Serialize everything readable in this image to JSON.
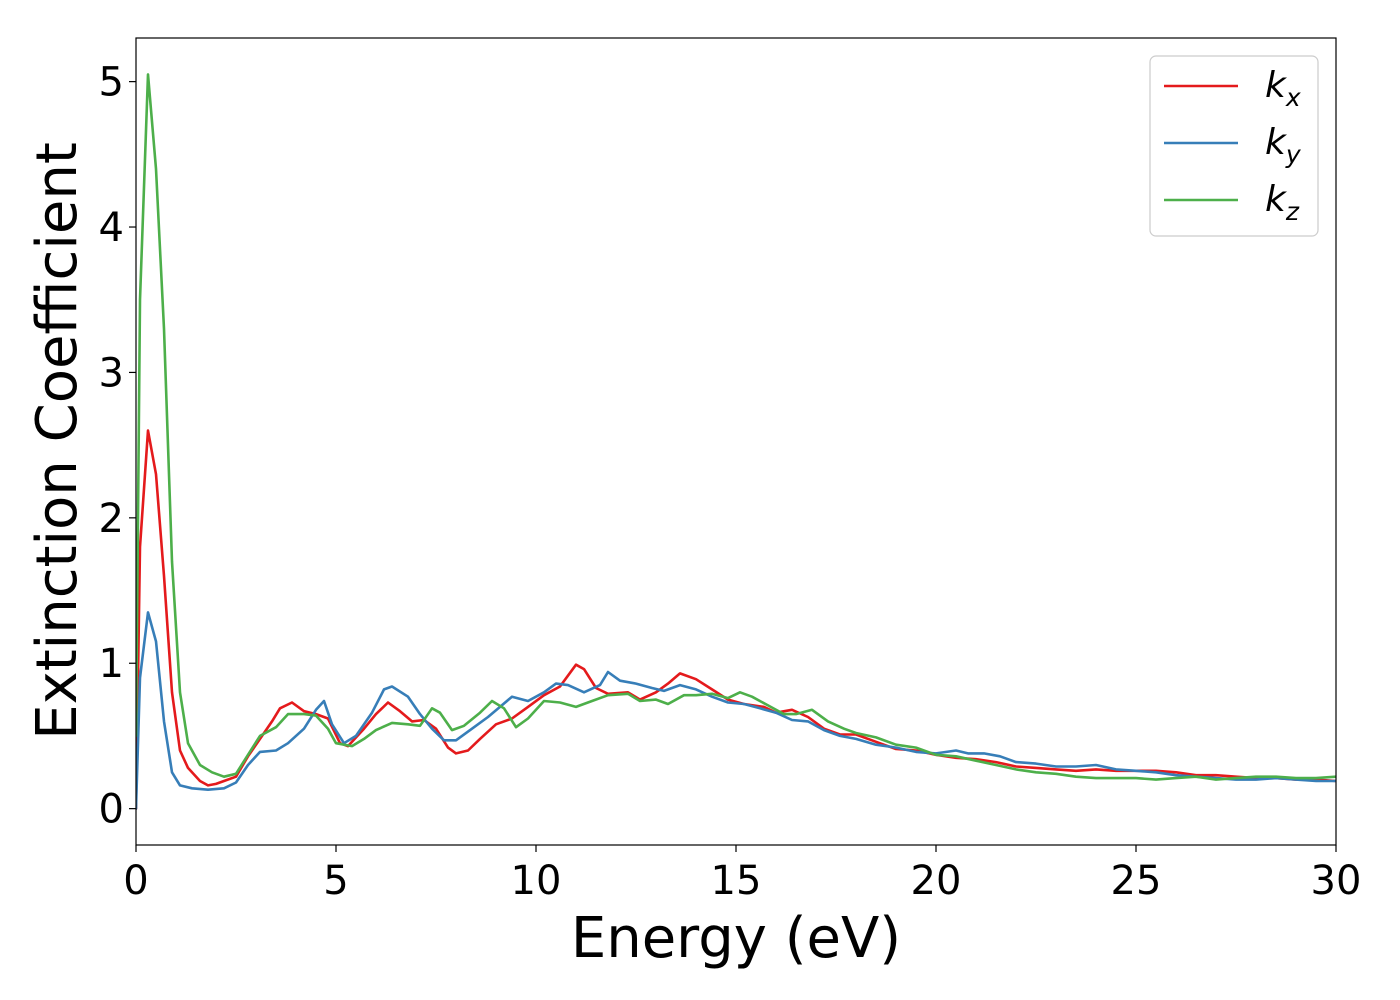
{
  "chart_data": {
    "type": "line",
    "xlabel": "Energy (eV)",
    "ylabel": "Extinction Coefficient",
    "xlim": [
      0,
      30
    ],
    "ylim": [
      -0.25,
      5.3
    ],
    "xticks": [
      0,
      5,
      10,
      15,
      20,
      25,
      30
    ],
    "xtick_labels": [
      "0",
      "5",
      "10",
      "15",
      "20",
      "25",
      "30"
    ],
    "yticks": [
      0,
      1,
      2,
      3,
      4,
      5
    ],
    "ytick_labels": [
      "0",
      "1",
      "2",
      "3",
      "4",
      "5"
    ],
    "grid": false,
    "legend_position": "top-right",
    "series": [
      {
        "name": "k_x",
        "label_main": "k",
        "label_sub": "x",
        "color": "#e41a1c",
        "points": [
          [
            0,
            0
          ],
          [
            0.1,
            1.8
          ],
          [
            0.3,
            2.6
          ],
          [
            0.5,
            2.3
          ],
          [
            0.7,
            1.6
          ],
          [
            0.9,
            0.8
          ],
          [
            1.1,
            0.4
          ],
          [
            1.3,
            0.28
          ],
          [
            1.6,
            0.19
          ],
          [
            1.8,
            0.16
          ],
          [
            2.0,
            0.17
          ],
          [
            2.2,
            0.19
          ],
          [
            2.5,
            0.22
          ],
          [
            2.8,
            0.36
          ],
          [
            3.1,
            0.48
          ],
          [
            3.4,
            0.6
          ],
          [
            3.6,
            0.69
          ],
          [
            3.9,
            0.73
          ],
          [
            4.2,
            0.67
          ],
          [
            4.5,
            0.65
          ],
          [
            4.8,
            0.62
          ],
          [
            5.1,
            0.45
          ],
          [
            5.3,
            0.43
          ],
          [
            5.7,
            0.55
          ],
          [
            6.0,
            0.65
          ],
          [
            6.3,
            0.73
          ],
          [
            6.6,
            0.67
          ],
          [
            6.9,
            0.6
          ],
          [
            7.2,
            0.61
          ],
          [
            7.5,
            0.55
          ],
          [
            7.8,
            0.42
          ],
          [
            8.0,
            0.38
          ],
          [
            8.3,
            0.4
          ],
          [
            8.6,
            0.48
          ],
          [
            9.0,
            0.58
          ],
          [
            9.4,
            0.62
          ],
          [
            9.8,
            0.7
          ],
          [
            10.2,
            0.78
          ],
          [
            10.6,
            0.84
          ],
          [
            11.0,
            0.99
          ],
          [
            11.2,
            0.96
          ],
          [
            11.5,
            0.83
          ],
          [
            11.8,
            0.79
          ],
          [
            12.3,
            0.8
          ],
          [
            12.6,
            0.75
          ],
          [
            13.0,
            0.8
          ],
          [
            13.3,
            0.86
          ],
          [
            13.6,
            0.93
          ],
          [
            14.0,
            0.89
          ],
          [
            14.4,
            0.82
          ],
          [
            14.8,
            0.75
          ],
          [
            15.2,
            0.72
          ],
          [
            15.7,
            0.7
          ],
          [
            16.0,
            0.66
          ],
          [
            16.4,
            0.68
          ],
          [
            16.8,
            0.63
          ],
          [
            17.2,
            0.55
          ],
          [
            17.6,
            0.51
          ],
          [
            18.0,
            0.51
          ],
          [
            18.5,
            0.46
          ],
          [
            19.0,
            0.41
          ],
          [
            19.5,
            0.4
          ],
          [
            20.0,
            0.37
          ],
          [
            20.5,
            0.35
          ],
          [
            21.0,
            0.34
          ],
          [
            21.5,
            0.32
          ],
          [
            22.0,
            0.29
          ],
          [
            22.5,
            0.28
          ],
          [
            23.0,
            0.27
          ],
          [
            23.5,
            0.26
          ],
          [
            24.0,
            0.27
          ],
          [
            24.5,
            0.26
          ],
          [
            25.0,
            0.26
          ],
          [
            25.5,
            0.26
          ],
          [
            26.0,
            0.25
          ],
          [
            26.5,
            0.23
          ],
          [
            27.0,
            0.23
          ],
          [
            27.5,
            0.22
          ],
          [
            28.0,
            0.21
          ],
          [
            28.5,
            0.21
          ],
          [
            29.0,
            0.2
          ],
          [
            29.5,
            0.2
          ],
          [
            30.0,
            0.19
          ]
        ]
      },
      {
        "name": "k_y",
        "label_main": "k",
        "label_sub": "y",
        "color": "#377eb8",
        "points": [
          [
            0,
            0
          ],
          [
            0.1,
            0.9
          ],
          [
            0.3,
            1.35
          ],
          [
            0.5,
            1.15
          ],
          [
            0.7,
            0.6
          ],
          [
            0.9,
            0.25
          ],
          [
            1.1,
            0.16
          ],
          [
            1.4,
            0.14
          ],
          [
            1.8,
            0.13
          ],
          [
            2.2,
            0.14
          ],
          [
            2.5,
            0.18
          ],
          [
            2.8,
            0.3
          ],
          [
            3.1,
            0.39
          ],
          [
            3.5,
            0.4
          ],
          [
            3.8,
            0.45
          ],
          [
            4.2,
            0.55
          ],
          [
            4.5,
            0.68
          ],
          [
            4.7,
            0.74
          ],
          [
            4.9,
            0.58
          ],
          [
            5.2,
            0.45
          ],
          [
            5.5,
            0.5
          ],
          [
            5.9,
            0.66
          ],
          [
            6.2,
            0.82
          ],
          [
            6.4,
            0.84
          ],
          [
            6.8,
            0.77
          ],
          [
            7.1,
            0.65
          ],
          [
            7.4,
            0.55
          ],
          [
            7.7,
            0.47
          ],
          [
            8.0,
            0.47
          ],
          [
            8.4,
            0.55
          ],
          [
            8.8,
            0.63
          ],
          [
            9.1,
            0.7
          ],
          [
            9.4,
            0.77
          ],
          [
            9.8,
            0.74
          ],
          [
            10.2,
            0.8
          ],
          [
            10.5,
            0.86
          ],
          [
            10.8,
            0.85
          ],
          [
            11.2,
            0.8
          ],
          [
            11.6,
            0.85
          ],
          [
            11.8,
            0.94
          ],
          [
            12.1,
            0.88
          ],
          [
            12.5,
            0.86
          ],
          [
            12.9,
            0.83
          ],
          [
            13.2,
            0.81
          ],
          [
            13.6,
            0.85
          ],
          [
            14.0,
            0.82
          ],
          [
            14.4,
            0.77
          ],
          [
            14.8,
            0.73
          ],
          [
            15.2,
            0.72
          ],
          [
            15.6,
            0.69
          ],
          [
            16.0,
            0.66
          ],
          [
            16.4,
            0.61
          ],
          [
            16.8,
            0.6
          ],
          [
            17.2,
            0.54
          ],
          [
            17.6,
            0.5
          ],
          [
            18.0,
            0.48
          ],
          [
            18.5,
            0.44
          ],
          [
            19.0,
            0.42
          ],
          [
            19.5,
            0.39
          ],
          [
            20.0,
            0.38
          ],
          [
            20.5,
            0.4
          ],
          [
            20.8,
            0.38
          ],
          [
            21.2,
            0.38
          ],
          [
            21.6,
            0.36
          ],
          [
            22.0,
            0.32
          ],
          [
            22.5,
            0.31
          ],
          [
            23.0,
            0.29
          ],
          [
            23.5,
            0.29
          ],
          [
            24.0,
            0.3
          ],
          [
            24.5,
            0.27
          ],
          [
            25.0,
            0.26
          ],
          [
            25.5,
            0.25
          ],
          [
            26.0,
            0.23
          ],
          [
            26.5,
            0.22
          ],
          [
            27.0,
            0.21
          ],
          [
            27.5,
            0.2
          ],
          [
            28.0,
            0.2
          ],
          [
            28.5,
            0.21
          ],
          [
            29.0,
            0.2
          ],
          [
            29.5,
            0.19
          ],
          [
            30.0,
            0.19
          ]
        ]
      },
      {
        "name": "k_z",
        "label_main": "k",
        "label_sub": "z",
        "color": "#4daf4a",
        "points": [
          [
            0,
            0.5
          ],
          [
            0.1,
            3.5
          ],
          [
            0.3,
            5.05
          ],
          [
            0.5,
            4.4
          ],
          [
            0.7,
            3.3
          ],
          [
            0.9,
            1.7
          ],
          [
            1.1,
            0.8
          ],
          [
            1.3,
            0.45
          ],
          [
            1.6,
            0.3
          ],
          [
            1.9,
            0.25
          ],
          [
            2.2,
            0.22
          ],
          [
            2.5,
            0.24
          ],
          [
            2.8,
            0.37
          ],
          [
            3.1,
            0.5
          ],
          [
            3.5,
            0.56
          ],
          [
            3.8,
            0.65
          ],
          [
            4.2,
            0.65
          ],
          [
            4.5,
            0.64
          ],
          [
            4.8,
            0.55
          ],
          [
            5.0,
            0.45
          ],
          [
            5.4,
            0.43
          ],
          [
            5.7,
            0.48
          ],
          [
            6.0,
            0.54
          ],
          [
            6.4,
            0.59
          ],
          [
            6.8,
            0.58
          ],
          [
            7.1,
            0.57
          ],
          [
            7.4,
            0.69
          ],
          [
            7.6,
            0.66
          ],
          [
            7.9,
            0.54
          ],
          [
            8.2,
            0.57
          ],
          [
            8.6,
            0.66
          ],
          [
            8.9,
            0.74
          ],
          [
            9.2,
            0.69
          ],
          [
            9.5,
            0.56
          ],
          [
            9.8,
            0.62
          ],
          [
            10.2,
            0.74
          ],
          [
            10.6,
            0.73
          ],
          [
            11.0,
            0.7
          ],
          [
            11.4,
            0.74
          ],
          [
            11.8,
            0.78
          ],
          [
            12.3,
            0.79
          ],
          [
            12.6,
            0.74
          ],
          [
            13.0,
            0.75
          ],
          [
            13.3,
            0.72
          ],
          [
            13.7,
            0.78
          ],
          [
            14.0,
            0.78
          ],
          [
            14.4,
            0.79
          ],
          [
            14.8,
            0.76
          ],
          [
            15.1,
            0.8
          ],
          [
            15.4,
            0.77
          ],
          [
            15.8,
            0.71
          ],
          [
            16.2,
            0.65
          ],
          [
            16.5,
            0.65
          ],
          [
            16.9,
            0.68
          ],
          [
            17.3,
            0.6
          ],
          [
            17.7,
            0.55
          ],
          [
            18.0,
            0.52
          ],
          [
            18.5,
            0.49
          ],
          [
            19.0,
            0.44
          ],
          [
            19.5,
            0.42
          ],
          [
            20.0,
            0.37
          ],
          [
            20.5,
            0.36
          ],
          [
            21.0,
            0.33
          ],
          [
            21.5,
            0.3
          ],
          [
            22.0,
            0.27
          ],
          [
            22.5,
            0.25
          ],
          [
            23.0,
            0.24
          ],
          [
            23.5,
            0.22
          ],
          [
            24.0,
            0.21
          ],
          [
            24.5,
            0.21
          ],
          [
            25.0,
            0.21
          ],
          [
            25.5,
            0.2
          ],
          [
            26.0,
            0.21
          ],
          [
            26.5,
            0.22
          ],
          [
            27.0,
            0.2
          ],
          [
            27.5,
            0.21
          ],
          [
            28.0,
            0.22
          ],
          [
            28.5,
            0.22
          ],
          [
            29.0,
            0.21
          ],
          [
            29.5,
            0.21
          ],
          [
            30.0,
            0.22
          ]
        ]
      }
    ]
  }
}
